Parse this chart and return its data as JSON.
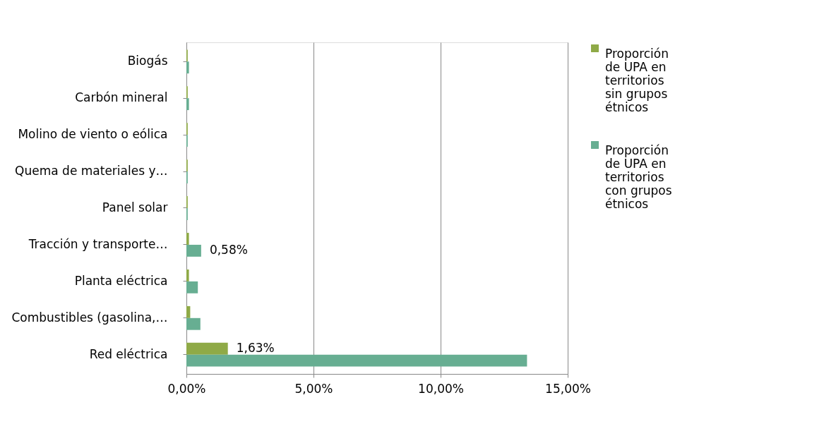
{
  "chart_data": {
    "type": "bar",
    "orientation": "horizontal",
    "categories": [
      "Biogás",
      "Carbón mineral",
      "Molino de viento o eólica",
      "Quema de materiales y…",
      "Panel solar",
      "Tracción y transporte…",
      "Planta eléctrica",
      "Combustibles (gasolina,…",
      "Red eléctrica"
    ],
    "series": [
      {
        "name": "Proporción de UPA en territorios sin grupos étnicos",
        "color": "#8faa47",
        "values": [
          0.05,
          0.05,
          0.05,
          0.05,
          0.05,
          0.1,
          0.1,
          0.15,
          1.63
        ],
        "value_labels": [
          null,
          null,
          null,
          null,
          null,
          null,
          null,
          null,
          "1,63%"
        ]
      },
      {
        "name": "Proporción de UPA en territorios con grupos étnicos",
        "color": "#67ae92",
        "values": [
          0.1,
          0.1,
          0.05,
          0.05,
          0.05,
          0.58,
          0.45,
          0.55,
          13.4
        ],
        "value_labels": [
          null,
          null,
          null,
          null,
          null,
          "0,58%",
          null,
          null,
          null
        ]
      }
    ],
    "xlim": [
      0,
      15
    ],
    "xticks": [
      {
        "value": 0,
        "label": "0,00%"
      },
      {
        "value": 5,
        "label": "5,00%"
      },
      {
        "value": 10,
        "label": "10,00%"
      },
      {
        "value": 15,
        "label": "15,00%"
      }
    ],
    "grid": "x",
    "legend": "right"
  }
}
